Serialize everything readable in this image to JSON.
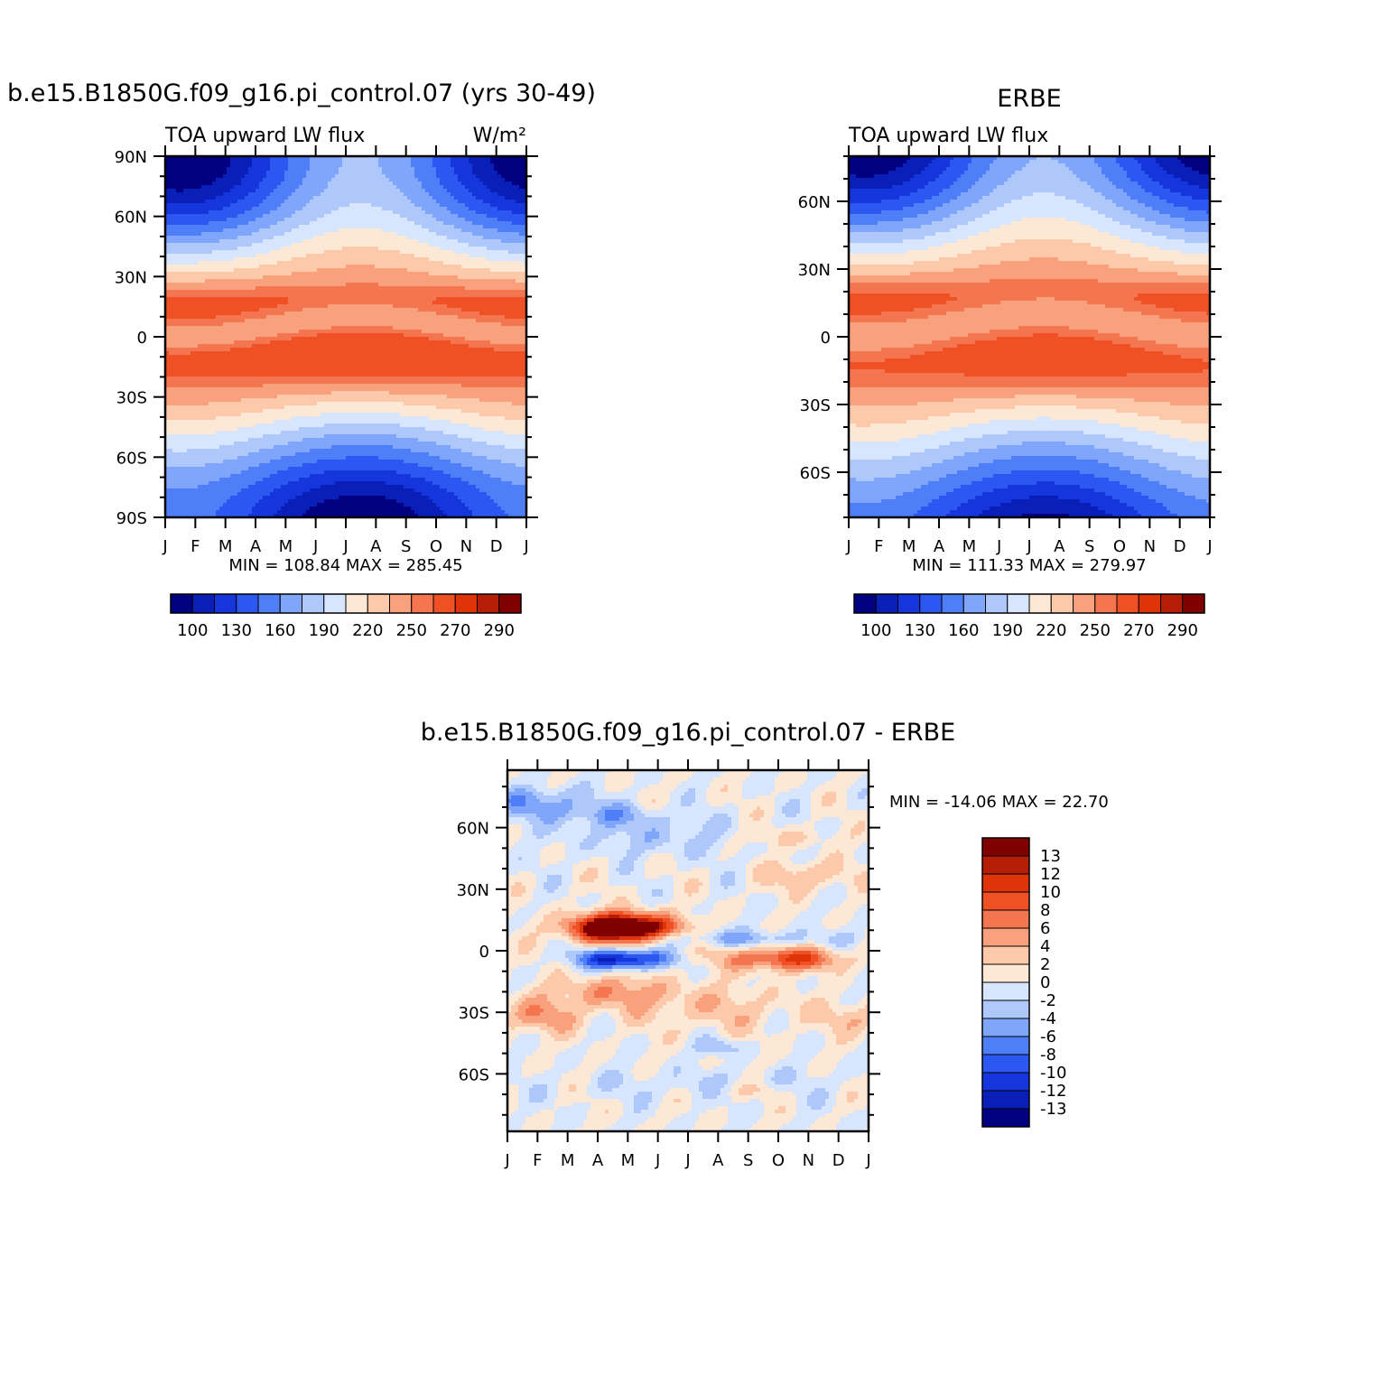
{
  "colors": {
    "abs_palette": [
      "#000080",
      "#0a1fb8",
      "#1535dd",
      "#2c57f0",
      "#4f7ff8",
      "#80a6fb",
      "#aec8fc",
      "#d7e6fd",
      "#fde8d6",
      "#fcc9aa",
      "#f9a07c",
      "#f47650",
      "#ef5124",
      "#de3408",
      "#b51d05",
      "#800000"
    ],
    "diff_palette": [
      "#000080",
      "#0a1fb8",
      "#1535dd",
      "#2c57f0",
      "#4f7ff8",
      "#80a6fb",
      "#aec8fc",
      "#d7e6fd",
      "#fde8d6",
      "#fcc9aa",
      "#f9a07c",
      "#f47650",
      "#ef5124",
      "#de3408",
      "#b51d05",
      "#800000"
    ]
  },
  "chart_data": [
    {
      "type": "heatmap",
      "title": "b.e15.B1850G.f09_g16.pi_control.07 (yrs 30-49)",
      "subtitle_left": "TOA upward LW flux",
      "subtitle_right": "W/m²",
      "xlabel": "",
      "ylabel": "",
      "x_ticks": [
        "J",
        "F",
        "M",
        "A",
        "M",
        "J",
        "J",
        "A",
        "S",
        "O",
        "N",
        "D",
        "J"
      ],
      "y_ticks": [
        "90N",
        "60N",
        "30N",
        "0",
        "30S",
        "60S",
        "90S"
      ],
      "ylim": [
        -90,
        90
      ],
      "stats": "MIN = 108.84 MAX = 285.45",
      "min": 108.84,
      "max": 285.45,
      "colorbar_labels": [
        "100",
        "130",
        "160",
        "190",
        "220",
        "250",
        "270",
        "290"
      ],
      "levels": [
        100,
        115,
        130,
        145,
        160,
        175,
        190,
        205,
        220,
        235,
        250,
        260,
        270,
        280,
        290
      ],
      "field": "Zonal mean TOA upward LW flux, latitude vs month"
    },
    {
      "type": "heatmap",
      "title": "ERBE",
      "subtitle_left": "TOA upward LW flux",
      "subtitle_right": "",
      "xlabel": "",
      "ylabel": "",
      "x_ticks": [
        "J",
        "F",
        "M",
        "A",
        "M",
        "J",
        "J",
        "A",
        "S",
        "O",
        "N",
        "D",
        "J"
      ],
      "y_ticks": [
        "60N",
        "30N",
        "0",
        "30S",
        "60S"
      ],
      "ylim": [
        -80,
        80
      ],
      "stats": "MIN = 111.33 MAX = 279.97",
      "min": 111.33,
      "max": 279.97,
      "colorbar_labels": [
        "100",
        "130",
        "160",
        "190",
        "220",
        "250",
        "270",
        "290"
      ],
      "levels": [
        100,
        115,
        130,
        145,
        160,
        175,
        190,
        205,
        220,
        235,
        250,
        260,
        270,
        280,
        290
      ]
    },
    {
      "type": "heatmap",
      "title": "b.e15.B1850G.f09_g16.pi_control.07 - ERBE",
      "xlabel": "",
      "ylabel": "",
      "x_ticks": [
        "J",
        "F",
        "M",
        "A",
        "M",
        "J",
        "J",
        "A",
        "S",
        "O",
        "N",
        "D",
        "J"
      ],
      "y_ticks": [
        "60N",
        "30N",
        "0",
        "30S",
        "60S"
      ],
      "ylim": [
        -88,
        88
      ],
      "stats": "MIN = -14.06 MAX =  22.70",
      "min": -14.06,
      "max": 22.7,
      "colorbar_labels": [
        "13",
        "12",
        "10",
        "8",
        "6",
        "4",
        "2",
        "0",
        "-2",
        "-4",
        "-6",
        "-8",
        "-10",
        "-12",
        "-13"
      ],
      "levels": [
        -13,
        -12,
        -10,
        -8,
        -6,
        -4,
        -2,
        0,
        2,
        4,
        6,
        8,
        10,
        12,
        13
      ]
    }
  ]
}
